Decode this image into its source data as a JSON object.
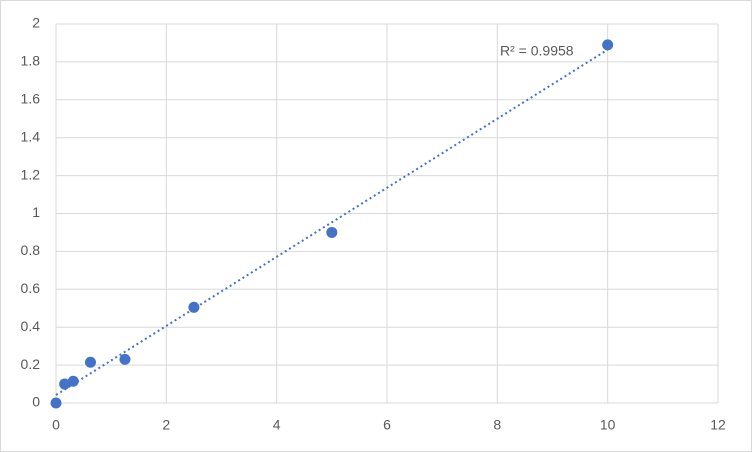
{
  "chart_data": {
    "type": "scatter",
    "x": [
      0,
      0.156,
      0.3125,
      0.625,
      1.25,
      2.5,
      5,
      10
    ],
    "values": [
      0,
      0.1,
      0.115,
      0.215,
      0.23,
      0.505,
      0.9,
      1.89
    ],
    "color": "#4472c4",
    "xlim": [
      0,
      12
    ],
    "xticks": [
      0,
      2,
      4,
      6,
      8,
      10,
      12
    ],
    "ylim": [
      0,
      2
    ],
    "yticks": [
      0,
      0.2,
      0.4,
      0.6,
      0.8,
      1,
      1.2,
      1.4,
      1.6,
      1.8,
      2
    ],
    "grid": true,
    "trendline": "linear",
    "annotation": "R² = 0.9958"
  }
}
